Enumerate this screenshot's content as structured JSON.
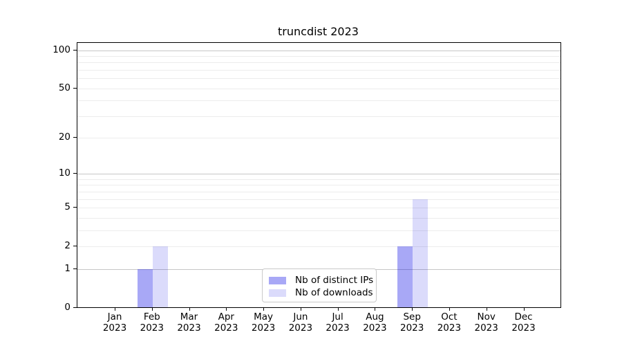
{
  "chart_data": {
    "type": "bar",
    "title": "truncdist 2023",
    "x_months": [
      "Jan",
      "Feb",
      "Mar",
      "Apr",
      "May",
      "Jun",
      "Jul",
      "Aug",
      "Sep",
      "Oct",
      "Nov",
      "Dec"
    ],
    "x_year": "2023",
    "series": [
      {
        "name": "Nb of distinct IPs",
        "color": "rgba(0,0,230,0.34)",
        "color_solid": "#a8a8f6",
        "values": [
          0,
          1,
          0,
          0,
          0,
          0,
          0,
          0,
          2,
          0,
          0,
          0
        ]
      },
      {
        "name": "Nb of downloads",
        "color": "rgba(0,0,230,0.14)",
        "color_solid": "#dbdbfb",
        "values": [
          0,
          2,
          0,
          0,
          0,
          0,
          0,
          0,
          6,
          0,
          0,
          0
        ]
      }
    ],
    "y_axis": {
      "scale": "log-like",
      "tick_values": [
        0,
        1,
        2,
        5,
        10,
        20,
        50,
        100
      ],
      "tick_labels": [
        "0",
        "1",
        "2",
        "5",
        "10",
        "20",
        "50",
        "100"
      ],
      "major_grid_values": [
        1,
        10,
        100
      ],
      "minor_grid_values": [
        2,
        3,
        4,
        5,
        6,
        7,
        8,
        9,
        20,
        30,
        40,
        50,
        60,
        70,
        80,
        90
      ],
      "ylim": [
        0,
        114
      ]
    },
    "legend": {
      "items": [
        "Nb of distinct IPs",
        "Nb of downloads"
      ],
      "location": "lower center"
    },
    "grid": true
  },
  "colors": {
    "background": "#ffffff",
    "spine": "#000000",
    "text": "#000000",
    "major_grid": "#c6c6c6",
    "minor_grid": "#ececec",
    "legend_border": "#c9c9c9"
  }
}
